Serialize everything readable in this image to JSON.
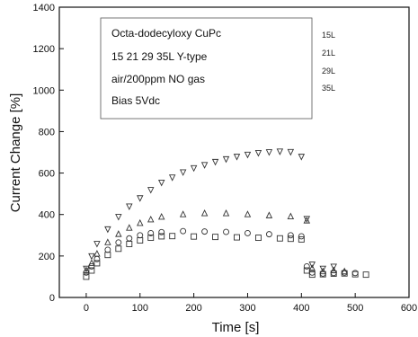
{
  "chart_data": {
    "type": "scatter",
    "xlabel": "Time [s]",
    "ylabel": "Current Change [%]",
    "xlim": [
      -50,
      600
    ],
    "ylim": [
      0,
      1400
    ],
    "x_ticks": [
      "0",
      "100",
      "200",
      "300",
      "400",
      "500",
      "600"
    ],
    "y_ticks": [
      "0",
      "200",
      "400",
      "600",
      "800",
      "1000",
      "1200",
      "1400"
    ],
    "x_tick_values": [
      0,
      100,
      200,
      300,
      400,
      500,
      600
    ],
    "y_tick_values": [
      0,
      200,
      400,
      600,
      800,
      1000,
      1200,
      1400
    ],
    "annotation_lines": [
      "Octa-dodecyloxy CuPc",
      "15 21 29 35L  Y-type",
      "air/200ppm NO   gas",
      "Bias  5Vdc"
    ],
    "series": [
      {
        "name": "15L",
        "marker": "square",
        "x": [
          0,
          10,
          20,
          40,
          60,
          80,
          100,
          120,
          140,
          160,
          200,
          240,
          280,
          320,
          360,
          380,
          400,
          410,
          420,
          440,
          460,
          480,
          500,
          520
        ],
        "y": [
          100,
          130,
          165,
          205,
          235,
          258,
          275,
          288,
          295,
          296,
          294,
          292,
          290,
          288,
          285,
          283,
          280,
          130,
          110,
          112,
          115,
          116,
          112,
          110
        ]
      },
      {
        "name": "21L",
        "marker": "circle",
        "x": [
          0,
          10,
          20,
          40,
          60,
          80,
          100,
          120,
          140,
          180,
          220,
          260,
          300,
          340,
          380,
          400,
          410,
          420,
          440,
          460,
          480,
          500
        ],
        "y": [
          120,
          150,
          185,
          230,
          265,
          285,
          300,
          310,
          315,
          320,
          318,
          316,
          310,
          305,
          300,
          295,
          150,
          120,
          115,
          118,
          120,
          118
        ]
      },
      {
        "name": "29L",
        "marker": "triangle-up",
        "x": [
          0,
          10,
          20,
          40,
          60,
          80,
          100,
          120,
          140,
          180,
          220,
          260,
          300,
          340,
          380,
          410,
          420,
          440,
          460,
          480
        ],
        "y": [
          130,
          165,
          210,
          265,
          305,
          335,
          358,
          375,
          388,
          400,
          405,
          405,
          400,
          395,
          390,
          370,
          140,
          125,
          130,
          125
        ]
      },
      {
        "name": "35L",
        "marker": "triangle-down",
        "x": [
          0,
          10,
          20,
          40,
          60,
          80,
          100,
          120,
          140,
          160,
          180,
          200,
          220,
          240,
          260,
          280,
          300,
          320,
          340,
          360,
          380,
          400,
          410,
          420,
          440,
          460
        ],
        "y": [
          140,
          200,
          260,
          330,
          390,
          440,
          480,
          520,
          555,
          580,
          605,
          625,
          640,
          655,
          668,
          680,
          690,
          698,
          702,
          705,
          703,
          680,
          380,
          160,
          140,
          150
        ]
      }
    ],
    "grid": false
  }
}
